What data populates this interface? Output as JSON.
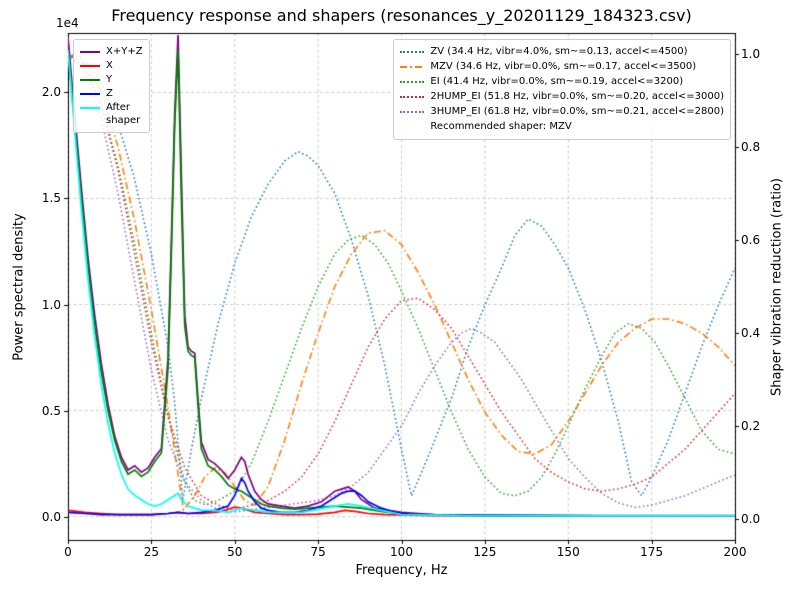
{
  "chart_data": {
    "type": "line",
    "title": "Frequency response and shapers (resonances_y_20201129_184323.csv)",
    "xlabel": "Frequency, Hz",
    "ylabel_left": "Power spectral density",
    "ylabel_right": "Shaper vibration reduction (ratio)",
    "offset_text_left": "1e4",
    "grid": true,
    "legend_position_left": "upper left",
    "legend_position_right": "upper right",
    "legend_note": "Recommended shaper: MZV",
    "xlim": [
      0,
      200
    ],
    "ylim_left": [
      -0.11,
      2.28
    ],
    "ylim_right": [
      -0.045,
      1.045
    ],
    "xticks": {
      "values": [
        0,
        25,
        50,
        75,
        100,
        125,
        150,
        175,
        200
      ],
      "labels": [
        "0",
        "25",
        "50",
        "75",
        "100",
        "125",
        "150",
        "175",
        "200"
      ]
    },
    "yticks_left": {
      "values": [
        0,
        0.5,
        1,
        1.5,
        2
      ],
      "labels": [
        "0.0",
        "0.5",
        "1.0",
        "1.5",
        "2.0"
      ]
    },
    "yticks_right": {
      "values": [
        0,
        0.2,
        0.4,
        0.6,
        0.8,
        1
      ],
      "labels": [
        "0.0",
        "0.2",
        "0.4",
        "0.6",
        "0.8",
        "1.0"
      ]
    },
    "psd_unit_scale": "1e4",
    "psd_series": [
      {
        "label": "X+Y+Z",
        "color": "#800080",
        "style": "solid",
        "axis": "left",
        "x": [
          0,
          2,
          4,
          6,
          8,
          10,
          12,
          14,
          16,
          18,
          20,
          22,
          24,
          26,
          28,
          30,
          31,
          32,
          33,
          34,
          35,
          36,
          37,
          38,
          39,
          40,
          42,
          44,
          46,
          48,
          50,
          51,
          52,
          53,
          54,
          56,
          58,
          60,
          64,
          68,
          72,
          76,
          80,
          82,
          84,
          86,
          88,
          92,
          96,
          100,
          105,
          110,
          120,
          140,
          160,
          180,
          200
        ],
        "y": [
          2.26,
          1.9,
          1.55,
          1.22,
          0.95,
          0.72,
          0.53,
          0.38,
          0.28,
          0.22,
          0.24,
          0.21,
          0.23,
          0.28,
          0.32,
          0.75,
          1.3,
          1.9,
          2.27,
          1.6,
          0.95,
          0.8,
          0.78,
          0.77,
          0.55,
          0.35,
          0.27,
          0.25,
          0.22,
          0.18,
          0.22,
          0.25,
          0.28,
          0.26,
          0.2,
          0.12,
          0.08,
          0.06,
          0.05,
          0.04,
          0.05,
          0.07,
          0.12,
          0.13,
          0.14,
          0.12,
          0.08,
          0.04,
          0.03,
          0.02,
          0.015,
          0.01,
          0.008,
          0.006,
          0.005,
          0.005,
          0.005
        ]
      },
      {
        "label": "X",
        "color": "#ff0000",
        "style": "solid",
        "axis": "left",
        "x": [
          0,
          5,
          10,
          15,
          20,
          25,
          30,
          33,
          36,
          40,
          44,
          46,
          48,
          50,
          52,
          54,
          56,
          60,
          65,
          70,
          75,
          80,
          83,
          86,
          90,
          95,
          100,
          110,
          130,
          160,
          200
        ],
        "y": [
          0.03,
          0.02,
          0.015,
          0.01,
          0.01,
          0.01,
          0.015,
          0.02,
          0.015,
          0.015,
          0.02,
          0.025,
          0.035,
          0.045,
          0.04,
          0.03,
          0.02,
          0.015,
          0.01,
          0.01,
          0.012,
          0.02,
          0.03,
          0.025,
          0.015,
          0.01,
          0.008,
          0.005,
          0.004,
          0.003,
          0.003
        ]
      },
      {
        "label": "Y",
        "color": "#008000",
        "style": "solid",
        "axis": "left",
        "x": [
          0,
          2,
          4,
          6,
          8,
          10,
          12,
          14,
          16,
          18,
          20,
          22,
          24,
          26,
          28,
          30,
          31,
          32,
          33,
          34,
          35,
          36,
          37,
          38,
          39,
          40,
          42,
          44,
          46,
          48,
          50,
          52,
          54,
          56,
          58,
          60,
          64,
          68,
          72,
          76,
          80,
          84,
          88,
          92,
          96,
          100,
          105,
          110,
          120,
          140,
          160,
          180,
          200
        ],
        "y": [
          2.2,
          1.85,
          1.5,
          1.18,
          0.9,
          0.68,
          0.5,
          0.36,
          0.26,
          0.2,
          0.22,
          0.19,
          0.21,
          0.26,
          0.3,
          0.7,
          1.25,
          1.85,
          2.2,
          1.5,
          0.9,
          0.78,
          0.76,
          0.75,
          0.52,
          0.32,
          0.24,
          0.22,
          0.19,
          0.15,
          0.13,
          0.12,
          0.1,
          0.08,
          0.06,
          0.05,
          0.04,
          0.035,
          0.04,
          0.045,
          0.05,
          0.045,
          0.04,
          0.03,
          0.02,
          0.015,
          0.01,
          0.008,
          0.006,
          0.005,
          0.004,
          0.004,
          0.004
        ]
      },
      {
        "label": "Z",
        "color": "#0000ff",
        "style": "solid",
        "axis": "left",
        "x": [
          0,
          5,
          10,
          15,
          20,
          25,
          30,
          33,
          36,
          40,
          44,
          48,
          50,
          51,
          52,
          53,
          54,
          56,
          58,
          60,
          64,
          68,
          72,
          76,
          78,
          80,
          82,
          84,
          86,
          88,
          90,
          94,
          98,
          102,
          110,
          130,
          160,
          200
        ],
        "y": [
          0.02,
          0.015,
          0.01,
          0.01,
          0.01,
          0.01,
          0.015,
          0.02,
          0.015,
          0.02,
          0.03,
          0.05,
          0.1,
          0.14,
          0.18,
          0.16,
          0.12,
          0.07,
          0.04,
          0.03,
          0.02,
          0.02,
          0.03,
          0.05,
          0.07,
          0.09,
          0.11,
          0.12,
          0.12,
          0.1,
          0.07,
          0.04,
          0.02,
          0.012,
          0.008,
          0.005,
          0.004,
          0.004
        ]
      },
      {
        "label": "After\nshaper",
        "color": "#00ffff",
        "style": "solid",
        "axis": "left",
        "x": [
          0,
          2,
          4,
          6,
          8,
          10,
          12,
          14,
          16,
          18,
          20,
          22,
          24,
          26,
          28,
          30,
          32,
          33,
          34,
          36,
          38,
          40,
          44,
          48,
          52,
          56,
          60,
          70,
          80,
          84,
          88,
          100,
          120,
          160,
          200
        ],
        "y": [
          2.2,
          1.82,
          1.45,
          1.12,
          0.85,
          0.62,
          0.44,
          0.3,
          0.2,
          0.13,
          0.1,
          0.08,
          0.06,
          0.05,
          0.06,
          0.08,
          0.1,
          0.11,
          0.08,
          0.05,
          0.04,
          0.03,
          0.03,
          0.02,
          0.04,
          0.03,
          0.02,
          0.02,
          0.05,
          0.06,
          0.05,
          0.01,
          0.005,
          0.004,
          0.004
        ]
      }
    ],
    "shaper_series": [
      {
        "label": "ZV (34.4 Hz, vibr=4.0%, sm~=0.13, accel<=4500)",
        "color": "#1f77b4",
        "style": "dotted",
        "axis": "right",
        "x": [
          0,
          5,
          10,
          15,
          20,
          25,
          30,
          32,
          34.4,
          37,
          40,
          45,
          50,
          55,
          60,
          65,
          69,
          72,
          75,
          80,
          85,
          90,
          95,
          100,
          103,
          106,
          110,
          115,
          120,
          125,
          130,
          134,
          138,
          142,
          146,
          150,
          155,
          160,
          165,
          169,
          172,
          175,
          180,
          185,
          190,
          195,
          200
        ],
        "y": [
          1.0,
          0.99,
          0.94,
          0.85,
          0.73,
          0.57,
          0.37,
          0.25,
          0.04,
          0.15,
          0.26,
          0.42,
          0.55,
          0.65,
          0.72,
          0.77,
          0.79,
          0.78,
          0.76,
          0.7,
          0.6,
          0.48,
          0.33,
          0.15,
          0.05,
          0.1,
          0.17,
          0.26,
          0.37,
          0.46,
          0.54,
          0.61,
          0.645,
          0.63,
          0.59,
          0.54,
          0.45,
          0.34,
          0.21,
          0.08,
          0.05,
          0.09,
          0.17,
          0.27,
          0.37,
          0.46,
          0.54
        ]
      },
      {
        "label": "MZV (34.6 Hz, vibr=0.0%, sm~=0.17, accel<=3500)",
        "color": "#ff7f0e",
        "style": "dashdot",
        "axis": "right",
        "x": [
          0,
          5,
          10,
          15,
          20,
          25,
          30,
          34.6,
          38,
          41,
          44,
          47,
          50,
          53,
          56,
          60,
          65,
          70,
          75,
          80,
          85,
          90,
          95,
          100,
          105,
          110,
          115,
          120,
          125,
          130,
          135,
          140,
          145,
          150,
          155,
          160,
          165,
          170,
          175,
          180,
          185,
          190,
          195,
          200
        ],
        "y": [
          1.0,
          0.98,
          0.92,
          0.8,
          0.64,
          0.45,
          0.24,
          0.02,
          0.05,
          0.09,
          0.11,
          0.1,
          0.07,
          0.04,
          0.03,
          0.07,
          0.17,
          0.29,
          0.4,
          0.5,
          0.57,
          0.615,
          0.62,
          0.59,
          0.53,
          0.46,
          0.38,
          0.3,
          0.23,
          0.18,
          0.145,
          0.14,
          0.16,
          0.21,
          0.27,
          0.33,
          0.38,
          0.41,
          0.43,
          0.43,
          0.42,
          0.4,
          0.37,
          0.33
        ]
      },
      {
        "label": "EI (41.4 Hz, vibr=0.0%, sm~=0.19, accel<=3200)",
        "color": "#2ca02c",
        "style": "dotted",
        "axis": "right",
        "x": [
          0,
          5,
          10,
          15,
          20,
          25,
          30,
          35,
          38,
          41.4,
          45,
          50,
          55,
          60,
          65,
          70,
          75,
          80,
          84,
          88,
          92,
          96,
          100,
          105,
          110,
          115,
          120,
          125,
          130,
          134,
          138,
          142,
          146,
          150,
          155,
          160,
          164,
          168,
          172,
          176,
          180,
          185,
          190,
          195,
          200
        ],
        "y": [
          1.0,
          0.97,
          0.89,
          0.76,
          0.59,
          0.4,
          0.22,
          0.08,
          0.04,
          0.03,
          0.04,
          0.06,
          0.12,
          0.21,
          0.31,
          0.41,
          0.5,
          0.57,
          0.6,
          0.61,
          0.59,
          0.55,
          0.49,
          0.41,
          0.32,
          0.23,
          0.15,
          0.09,
          0.055,
          0.05,
          0.06,
          0.09,
          0.14,
          0.2,
          0.28,
          0.35,
          0.4,
          0.42,
          0.41,
          0.38,
          0.33,
          0.26,
          0.19,
          0.15,
          0.14
        ]
      },
      {
        "label": "2HUMP_EI (51.8 Hz, vibr=0.0%, sm~=0.20, accel<=3000)",
        "color": "#d62728",
        "style": "dotted",
        "axis": "right",
        "x": [
          0,
          5,
          10,
          15,
          20,
          25,
          30,
          35,
          40,
          45,
          50,
          55,
          60,
          65,
          70,
          75,
          80,
          85,
          90,
          95,
          100,
          105,
          110,
          115,
          120,
          125,
          130,
          135,
          140,
          145,
          150,
          155,
          160,
          165,
          170,
          175,
          180,
          185,
          190,
          195,
          200
        ],
        "y": [
          1.0,
          0.97,
          0.89,
          0.75,
          0.57,
          0.38,
          0.22,
          0.11,
          0.05,
          0.03,
          0.02,
          0.03,
          0.04,
          0.06,
          0.09,
          0.14,
          0.21,
          0.29,
          0.37,
          0.43,
          0.47,
          0.475,
          0.45,
          0.41,
          0.35,
          0.29,
          0.23,
          0.18,
          0.13,
          0.1,
          0.08,
          0.065,
          0.06,
          0.065,
          0.075,
          0.09,
          0.12,
          0.15,
          0.19,
          0.23,
          0.27
        ]
      },
      {
        "label": "3HUMP_EI (61.8 Hz, vibr=0.0%, sm~=0.21, accel<=2800)",
        "color": "#9467bd",
        "style": "dotted",
        "axis": "right",
        "x": [
          0,
          5,
          10,
          15,
          20,
          25,
          30,
          35,
          40,
          45,
          50,
          55,
          60,
          65,
          70,
          75,
          80,
          85,
          90,
          95,
          100,
          105,
          110,
          115,
          118,
          121,
          124,
          128,
          132,
          136,
          140,
          145,
          150,
          155,
          160,
          165,
          170,
          175,
          180,
          185,
          190,
          195,
          200
        ],
        "y": [
          1.0,
          0.96,
          0.86,
          0.7,
          0.51,
          0.32,
          0.17,
          0.08,
          0.04,
          0.02,
          0.015,
          0.02,
          0.025,
          0.03,
          0.035,
          0.04,
          0.05,
          0.07,
          0.1,
          0.15,
          0.2,
          0.27,
          0.33,
          0.38,
          0.4,
          0.41,
          0.4,
          0.38,
          0.34,
          0.3,
          0.25,
          0.19,
          0.13,
          0.09,
          0.055,
          0.035,
          0.025,
          0.03,
          0.04,
          0.05,
          0.065,
          0.08,
          0.095
        ]
      }
    ]
  }
}
